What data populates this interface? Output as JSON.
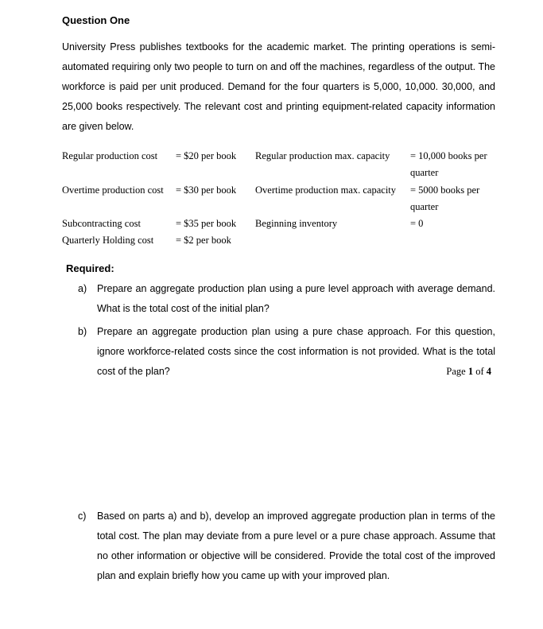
{
  "title": "Question One",
  "intro": "University Press publishes textbooks for the academic market. The printing operations is semi-automated requiring only two people to turn on and off the machines, regardless of the output. The workforce is paid per unit produced. Demand for the four quarters is 5,000, 10,000. 30,000, and 25,000 books respectively. The relevant cost and printing equipment-related capacity information are given below.",
  "costs": {
    "rows": [
      {
        "label1": "Regular production cost",
        "value1": "= $20 per book",
        "label2": "Regular production max. capacity",
        "value2": "= 10,000 books per quarter"
      },
      {
        "label1": "Overtime production cost",
        "value1": "= $30 per book",
        "label2": "Overtime production max. capacity",
        "value2": "= 5000 books per quarter"
      },
      {
        "label1": "Subcontracting cost",
        "value1": "= $35 per book",
        "label2": "Beginning inventory",
        "value2": "= 0"
      },
      {
        "label1": "Quarterly Holding cost",
        "value1": "= $2 per book",
        "label2": "",
        "value2": ""
      }
    ]
  },
  "required_label": "Required:",
  "requirements": {
    "a": {
      "marker": "a)",
      "text": "Prepare an aggregate production plan using a pure level approach with average demand. What is the total cost of the initial plan?"
    },
    "b": {
      "marker": "b)",
      "text": "Prepare an aggregate production plan using a pure chase approach. For this question, ignore workforce-related costs since the cost information is not provided. What is the total cost of the plan?"
    },
    "c": {
      "marker": "c)",
      "text": "Based on parts a) and b), develop an improved aggregate production plan in terms of the total cost. The plan may deviate from a pure level or a pure chase approach. Assume that no other information or objective will be considered. Provide the total cost of the improved plan and explain briefly how you came up with your improved plan."
    }
  },
  "page_footer": {
    "prefix": "Page ",
    "current": "1",
    "middle": " of ",
    "total": "4"
  }
}
